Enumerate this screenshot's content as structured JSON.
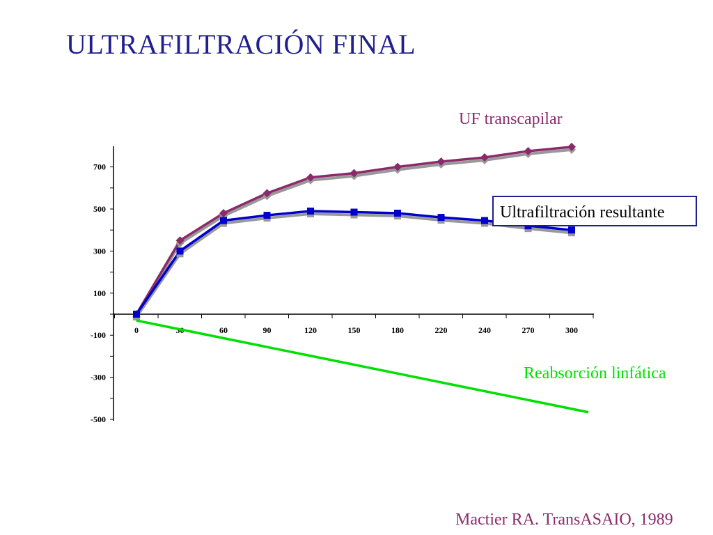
{
  "slide": {
    "title": "ULTRAFILTRACIÓN FINAL",
    "citation": "Mactier RA. TransASAIO, 1989"
  },
  "colors": {
    "title": "#1f1f8f",
    "uf_transcapilar": "#8b2a6b",
    "resultante": "#0000cc",
    "reabsorcion": "#00e000",
    "citation": "#8b2a6b",
    "shadow": "#999999"
  },
  "chart_data": {
    "type": "line",
    "categories": [
      "0",
      "30",
      "60",
      "90",
      "120",
      "150",
      "180",
      "220",
      "240",
      "270",
      "300"
    ],
    "y_ticks": [
      "700",
      "500",
      "300",
      "100",
      "-100",
      "-300",
      "-500"
    ],
    "ylim": [
      -500,
      800
    ],
    "grid": false,
    "series": [
      {
        "name": "UF transcapilar",
        "marker": "diamond",
        "values": [
          0,
          350,
          480,
          575,
          650,
          670,
          700,
          725,
          745,
          775,
          795
        ]
      },
      {
        "name": "Ultrafiltración resultante",
        "marker": "square",
        "values": [
          0,
          300,
          445,
          470,
          490,
          485,
          480,
          460,
          445,
          420,
          400
        ]
      },
      {
        "name": "Reabsorción linfática",
        "marker": "none",
        "values": [
          -30,
          null,
          null,
          null,
          null,
          null,
          null,
          null,
          null,
          null,
          -450
        ]
      }
    ]
  }
}
